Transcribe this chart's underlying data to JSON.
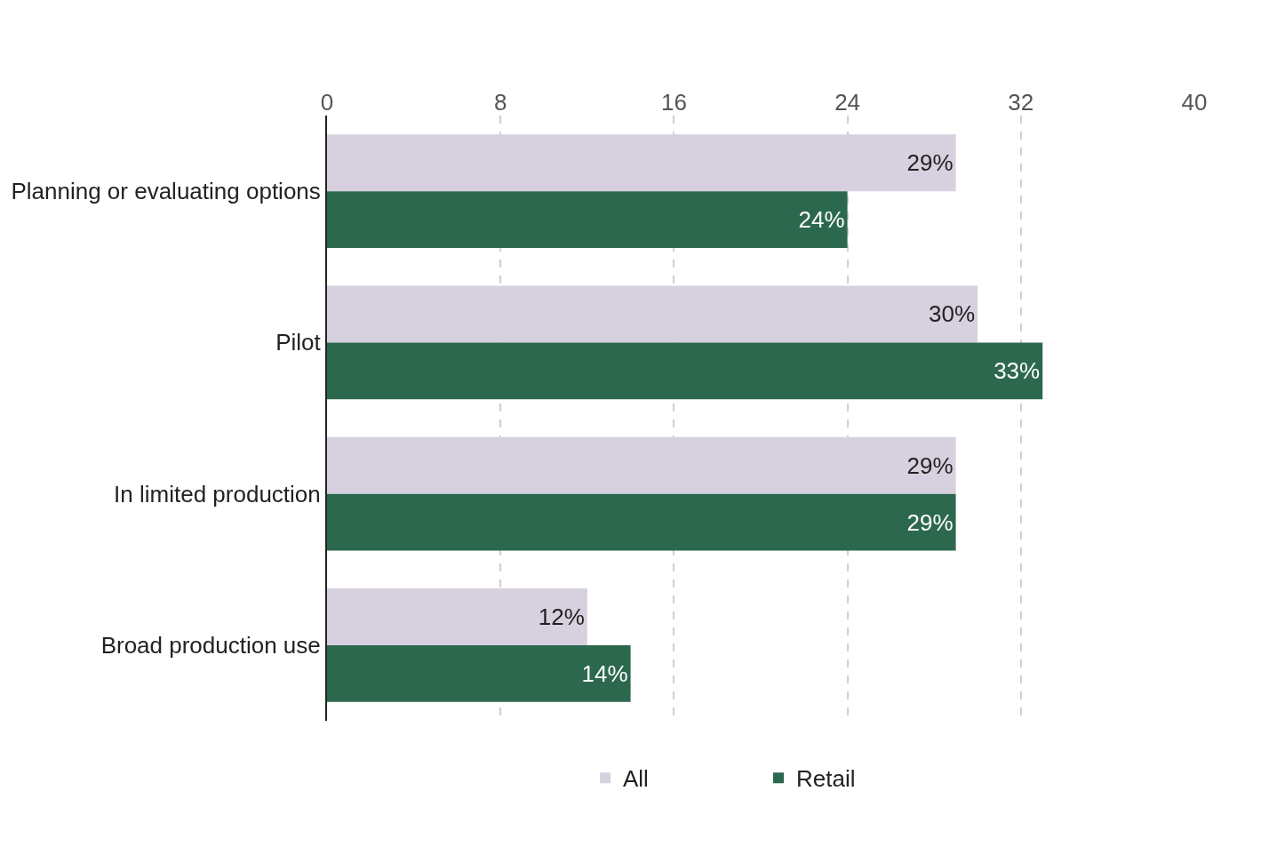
{
  "chart_data": {
    "type": "bar",
    "orientation": "horizontal",
    "categories": [
      "Planning or evaluating options",
      "Pilot",
      "In limited production",
      "Broad production use"
    ],
    "series": [
      {
        "name": "All",
        "color": "#d7d0df",
        "values": [
          29,
          30,
          29,
          12
        ],
        "value_labels": [
          "29%",
          "30%",
          "29%",
          "12%"
        ]
      },
      {
        "name": "Retail",
        "color": "#2c684e",
        "values": [
          24,
          33,
          29,
          14
        ],
        "value_labels": [
          "24%",
          "33%",
          "29%",
          "14%"
        ]
      }
    ],
    "xlim": [
      0,
      40
    ],
    "xticks": [
      0,
      8,
      16,
      24,
      32,
      40
    ],
    "grid": "x",
    "legend": "bottom"
  }
}
